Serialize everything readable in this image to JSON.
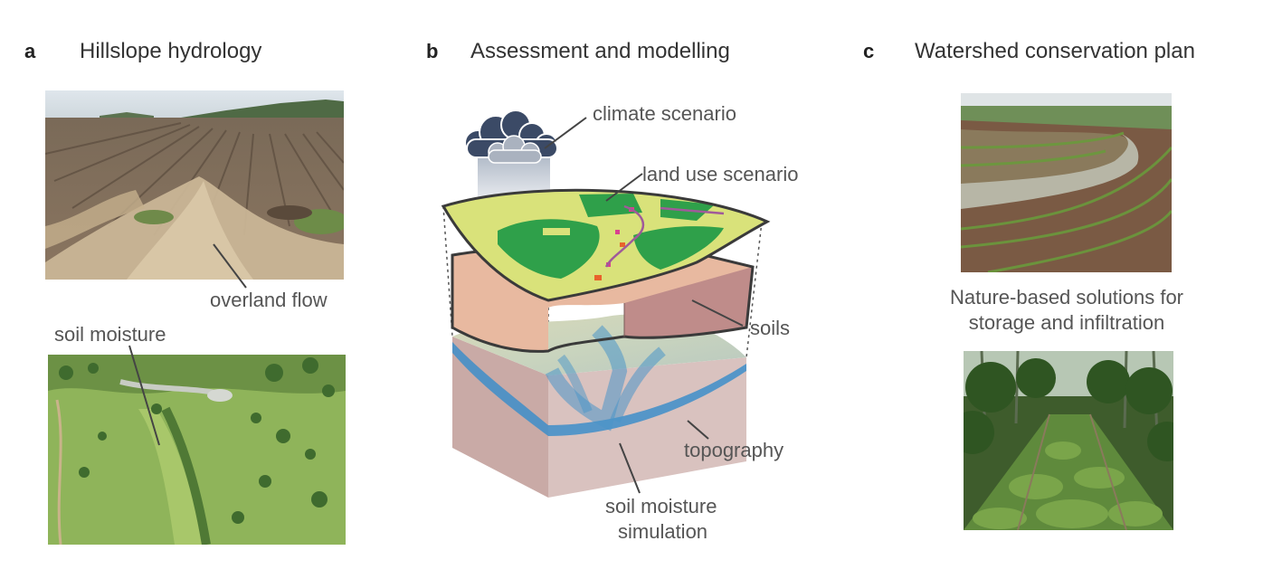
{
  "panels": {
    "a": {
      "letter": "a",
      "title": "Hillslope hydrology",
      "labels": {
        "overland_flow": "overland flow",
        "soil_moisture": "soil moisture"
      }
    },
    "b": {
      "letter": "b",
      "title": "Assessment and modelling",
      "labels": {
        "climate": "climate scenario",
        "land_use": "land use scenario",
        "soils": "soils",
        "topography": "topography",
        "sim_line1": "soil moisture",
        "sim_line2": "simulation"
      }
    },
    "c": {
      "letter": "c",
      "title": "Watershed conservation plan",
      "labels": {
        "nbs_line1": "Nature-based solutions for",
        "nbs_line2": "storage and infiltration"
      }
    }
  },
  "colors": {
    "text": "#555555",
    "title": "#333333",
    "leader": "#444444",
    "cloud": "#3b4a66"
  }
}
